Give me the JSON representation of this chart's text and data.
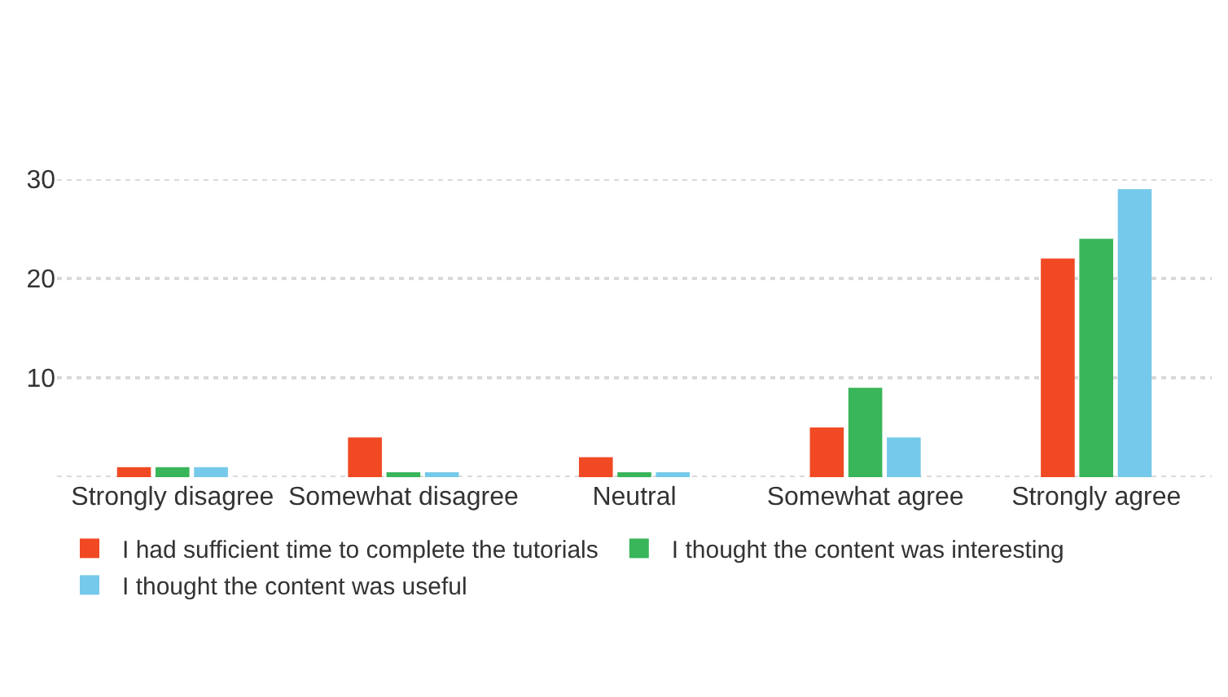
{
  "chart_data": {
    "type": "bar",
    "categories": [
      "Strongly disagree",
      "Somewhat disagree",
      "Neutral",
      "Somewhat agree",
      "Strongly agree"
    ],
    "series": [
      {
        "name": "I had sufficient time to complete the tutorials",
        "color": "#f04923",
        "values": [
          1,
          4,
          2,
          5,
          22
        ]
      },
      {
        "name": "I thought the content was interesting",
        "color": "#39b55a",
        "values": [
          1,
          0.5,
          0.5,
          9,
          24
        ]
      },
      {
        "name": "I thought the content was useful",
        "color": "#75c9ea",
        "values": [
          1,
          0.5,
          0.5,
          4,
          29
        ]
      }
    ],
    "ylim": [
      0,
      30
    ],
    "yticks": [
      {
        "value": 0,
        "label": null
      },
      10,
      20,
      30
    ],
    "grid": "y",
    "legend": "bottom"
  }
}
